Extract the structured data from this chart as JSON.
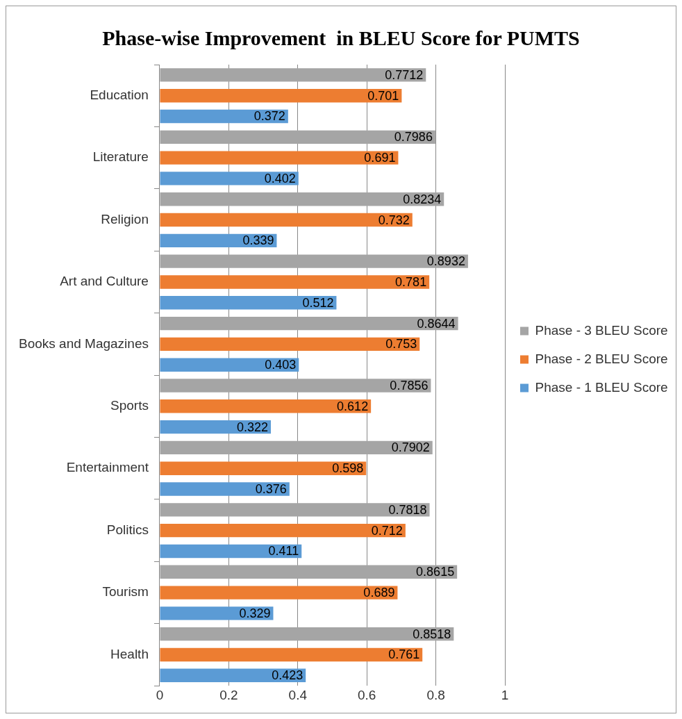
{
  "chart_data": {
    "type": "bar",
    "orientation": "horizontal",
    "title": "Phase-wise Improvement  in BLEU Score for PUMTS",
    "categories": [
      "Education",
      "Literature",
      "Religion",
      "Art and Culture",
      "Books and Magazines",
      "Sports",
      "Entertainment",
      "Politics",
      "Tourism",
      "Health"
    ],
    "series": [
      {
        "name": "Phase - 3 BLEU Score",
        "color": "#a5a5a5",
        "values": [
          0.7712,
          0.7986,
          0.8234,
          0.8932,
          0.8644,
          0.7856,
          0.7902,
          0.7818,
          0.8615,
          0.8518
        ]
      },
      {
        "name": "Phase - 2 BLEU Score",
        "color": "#ed7d31",
        "values": [
          0.701,
          0.691,
          0.732,
          0.781,
          0.753,
          0.612,
          0.598,
          0.712,
          0.689,
          0.761
        ]
      },
      {
        "name": "Phase - 1 BLEU Score",
        "color": "#5b9bd5",
        "values": [
          0.372,
          0.402,
          0.339,
          0.512,
          0.403,
          0.322,
          0.376,
          0.411,
          0.329,
          0.423
        ]
      }
    ],
    "xlim": [
      0,
      1
    ],
    "xticks": [
      0,
      0.2,
      0.4,
      0.6,
      0.8,
      1
    ],
    "grid": "x",
    "legend": "right",
    "data_labels": true
  }
}
